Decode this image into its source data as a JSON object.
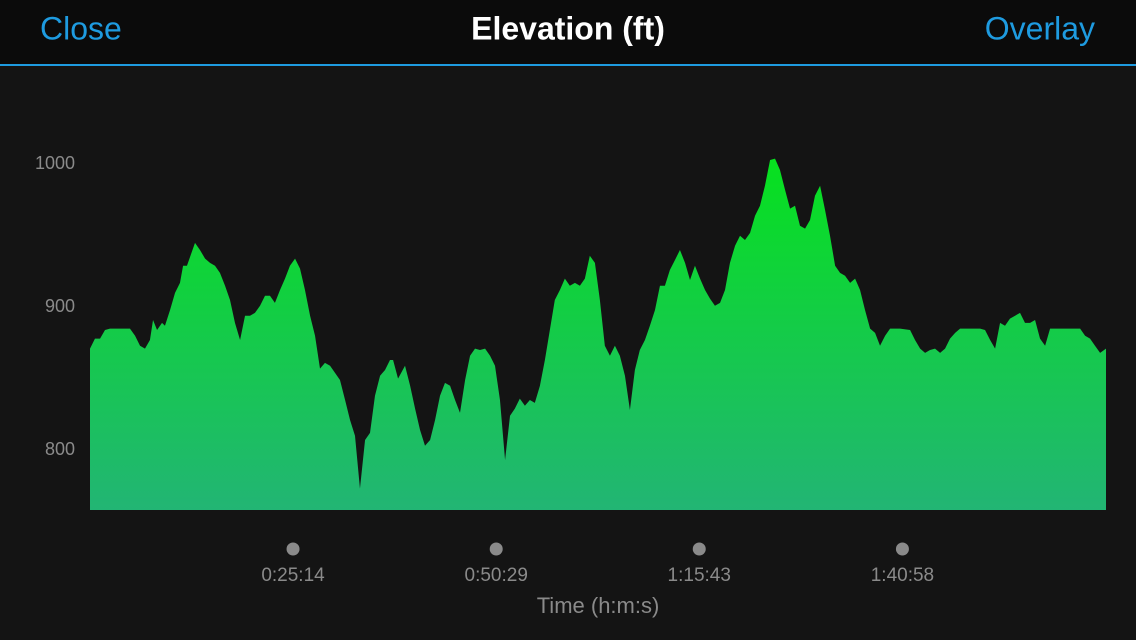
{
  "header": {
    "left_button": "Close",
    "title": "Elevation (ft)",
    "right_button": "Overlay"
  },
  "chart_data": {
    "type": "area",
    "x_label": "Time (h:m:s)",
    "gradient": [
      "#06e21c",
      "#22b574"
    ],
    "x": [
      0,
      37,
      75,
      112,
      149,
      224,
      298,
      336,
      373,
      410,
      447,
      470,
      500,
      537,
      559,
      597,
      634,
      671,
      694,
      723,
      783,
      820,
      858,
      895,
      932,
      969,
      1007,
      1044,
      1081,
      1119,
      1156,
      1193,
      1230,
      1268,
      1305,
      1342,
      1379,
      1417,
      1454,
      1491,
      1529,
      1566,
      1603,
      1641,
      1678,
      1715,
      1752,
      1790,
      1827,
      1864,
      1902,
      1939,
      1976,
      2013,
      2051,
      2088,
      2125,
      2163,
      2200,
      2237,
      2260,
      2297,
      2349,
      2387,
      2424,
      2461,
      2498,
      2536,
      2573,
      2610,
      2647,
      2685,
      2722,
      2759,
      2797,
      2834,
      2871,
      2908,
      2946,
      2983,
      3020,
      3057,
      3095,
      3132,
      3168,
      3205,
      3243,
      3280,
      3317,
      3355,
      3392,
      3429,
      3466,
      3504,
      3541,
      3578,
      3616,
      3653,
      3690,
      3727,
      3765,
      3802,
      3839,
      3877,
      3914,
      3951,
      3989,
      4026,
      4063,
      4100,
      4138,
      4175,
      4213,
      4250,
      4287,
      4324,
      4362,
      4399,
      4437,
      4474,
      4511,
      4549,
      4586,
      4623,
      4660,
      4698,
      4735,
      4772,
      4810,
      4847,
      4884,
      4922,
      4959,
      4996,
      5033,
      5071,
      5108,
      5145,
      5183,
      5220,
      5257,
      5294,
      5332,
      5369,
      5406,
      5444,
      5481,
      5518,
      5556,
      5593,
      5630,
      5668,
      5705,
      5742,
      5779,
      5817,
      5854,
      5891,
      5929,
      5966,
      6040,
      6115,
      6152,
      6190,
      6227,
      6264,
      6301,
      6339,
      6376,
      6413,
      6451,
      6488,
      6562,
      6637,
      6674,
      6712,
      6749,
      6786,
      6823,
      6860,
      6898,
      6935,
      6972,
      7010,
      7047,
      7084,
      7122,
      7159,
      7233,
      7308,
      7383,
      7420,
      7457,
      7494,
      7532,
      7576
    ],
    "values": [
      871,
      878,
      878,
      884,
      885,
      885,
      885,
      880,
      873,
      871,
      877,
      891,
      884,
      889,
      887,
      898,
      910,
      917,
      929,
      929,
      945,
      940,
      934,
      931,
      929,
      924,
      915,
      905,
      889,
      877,
      894,
      894,
      896,
      901,
      908,
      908,
      903,
      912,
      920,
      929,
      934,
      927,
      912,
      894,
      880,
      857,
      861,
      859,
      854,
      849,
      835,
      821,
      810,
      773,
      807,
      812,
      838,
      852,
      856,
      863,
      863,
      850,
      859,
      845,
      829,
      814,
      803,
      807,
      821,
      838,
      847,
      845,
      835,
      826,
      849,
      866,
      871,
      870,
      871,
      866,
      859,
      835,
      793,
      824,
      829,
      836,
      831,
      835,
      833,
      845,
      863,
      884,
      905,
      912,
      920,
      915,
      917,
      915,
      920,
      936,
      931,
      905,
      873,
      866,
      873,
      866,
      852,
      828,
      856,
      870,
      877,
      887,
      898,
      915,
      915,
      926,
      933,
      940,
      931,
      919,
      929,
      920,
      912,
      906,
      901,
      903,
      912,
      931,
      943,
      950,
      947,
      952,
      964,
      971,
      985,
      1003,
      1004,
      996,
      982,
      969,
      971,
      957,
      955,
      961,
      978,
      985,
      968,
      950,
      929,
      924,
      922,
      917,
      920,
      912,
      898,
      885,
      882,
      873,
      880,
      885,
      885,
      884,
      877,
      871,
      868,
      870,
      871,
      868,
      871,
      878,
      882,
      885,
      885,
      885,
      884,
      877,
      871,
      889,
      887,
      892,
      894,
      896,
      889,
      889,
      891,
      878,
      873,
      885,
      885,
      885,
      885,
      880,
      878,
      873,
      868,
      871
    ],
    "xlim": [
      0,
      7576
    ],
    "ylim": [
      758,
      1066
    ],
    "xticks": [
      {
        "value": 1514,
        "label": "0:25:14"
      },
      {
        "value": 3029,
        "label": "0:50:29"
      },
      {
        "value": 4543,
        "label": "1:15:43"
      },
      {
        "value": 6058,
        "label": "1:40:58"
      }
    ],
    "yticks": [
      800,
      900,
      1000
    ]
  }
}
